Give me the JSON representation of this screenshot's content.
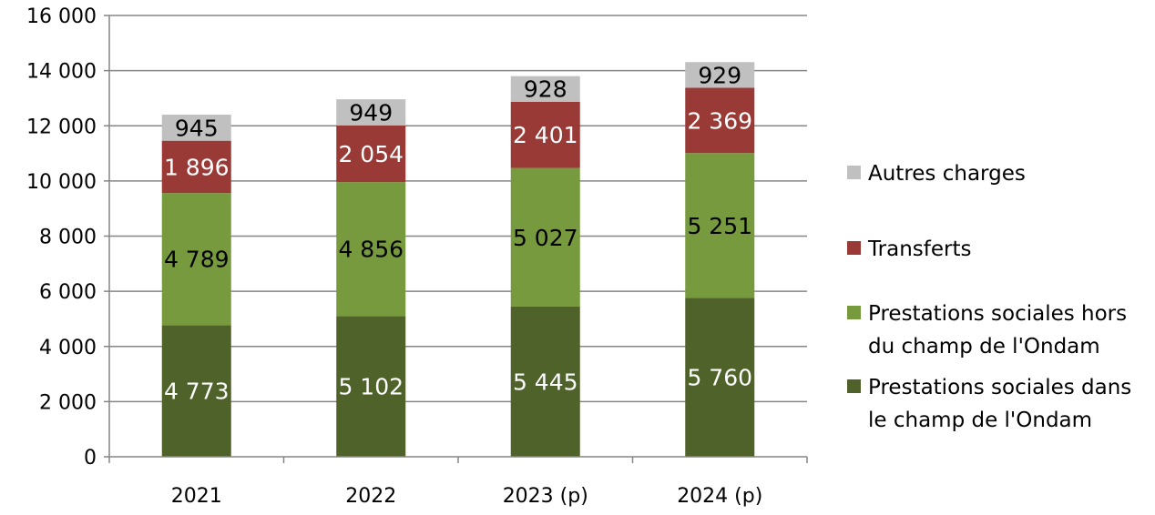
{
  "chart_data": {
    "type": "bar",
    "stacked": true,
    "title": "",
    "xlabel": "",
    "ylabel": "",
    "ylim": [
      0,
      16000
    ],
    "yticks": [
      0,
      2000,
      4000,
      6000,
      8000,
      10000,
      12000,
      14000,
      16000
    ],
    "ytick_labels": [
      "0",
      "2 000",
      "4 000",
      "6 000",
      "8 000",
      "10 000",
      "12 000",
      "14 000",
      "16 000"
    ],
    "grid": "horizontal",
    "legend_position": "right",
    "categories": [
      "2021",
      "2022",
      "2023 (p)",
      "2024 (p)"
    ],
    "series": [
      {
        "name": "Prestations sociales dans le champ de l'Ondam",
        "legend_lines": [
          "Prestations sociales dans",
          "le champ de l'Ondam"
        ],
        "color": "#4e6229",
        "label_color": "#ffffff",
        "values": [
          4773,
          5102,
          5445,
          5760
        ],
        "labels": [
          "4 773",
          "5 102",
          "5 445",
          "5 760"
        ]
      },
      {
        "name": "Prestations sociales hors du champ de l'Ondam",
        "legend_lines": [
          "Prestations sociales hors",
          "du champ de l'Ondam"
        ],
        "color": "#779a3e",
        "label_color": "#000000",
        "values": [
          4789,
          4856,
          5027,
          5251
        ],
        "labels": [
          "4 789",
          "4 856",
          "5 027",
          "5 251"
        ]
      },
      {
        "name": "Transferts",
        "legend_lines": [
          "Transferts"
        ],
        "color": "#993a37",
        "label_color": "#ffffff",
        "values": [
          1896,
          2054,
          2401,
          2369
        ],
        "labels": [
          "1 896",
          "2 054",
          "2 401",
          "2 369"
        ]
      },
      {
        "name": "Autres charges",
        "legend_lines": [
          "Autres charges"
        ],
        "color": "#c0c0c0",
        "label_color": "#000000",
        "values": [
          945,
          949,
          928,
          929
        ],
        "labels": [
          "945",
          "949",
          "928",
          "929"
        ]
      }
    ]
  }
}
